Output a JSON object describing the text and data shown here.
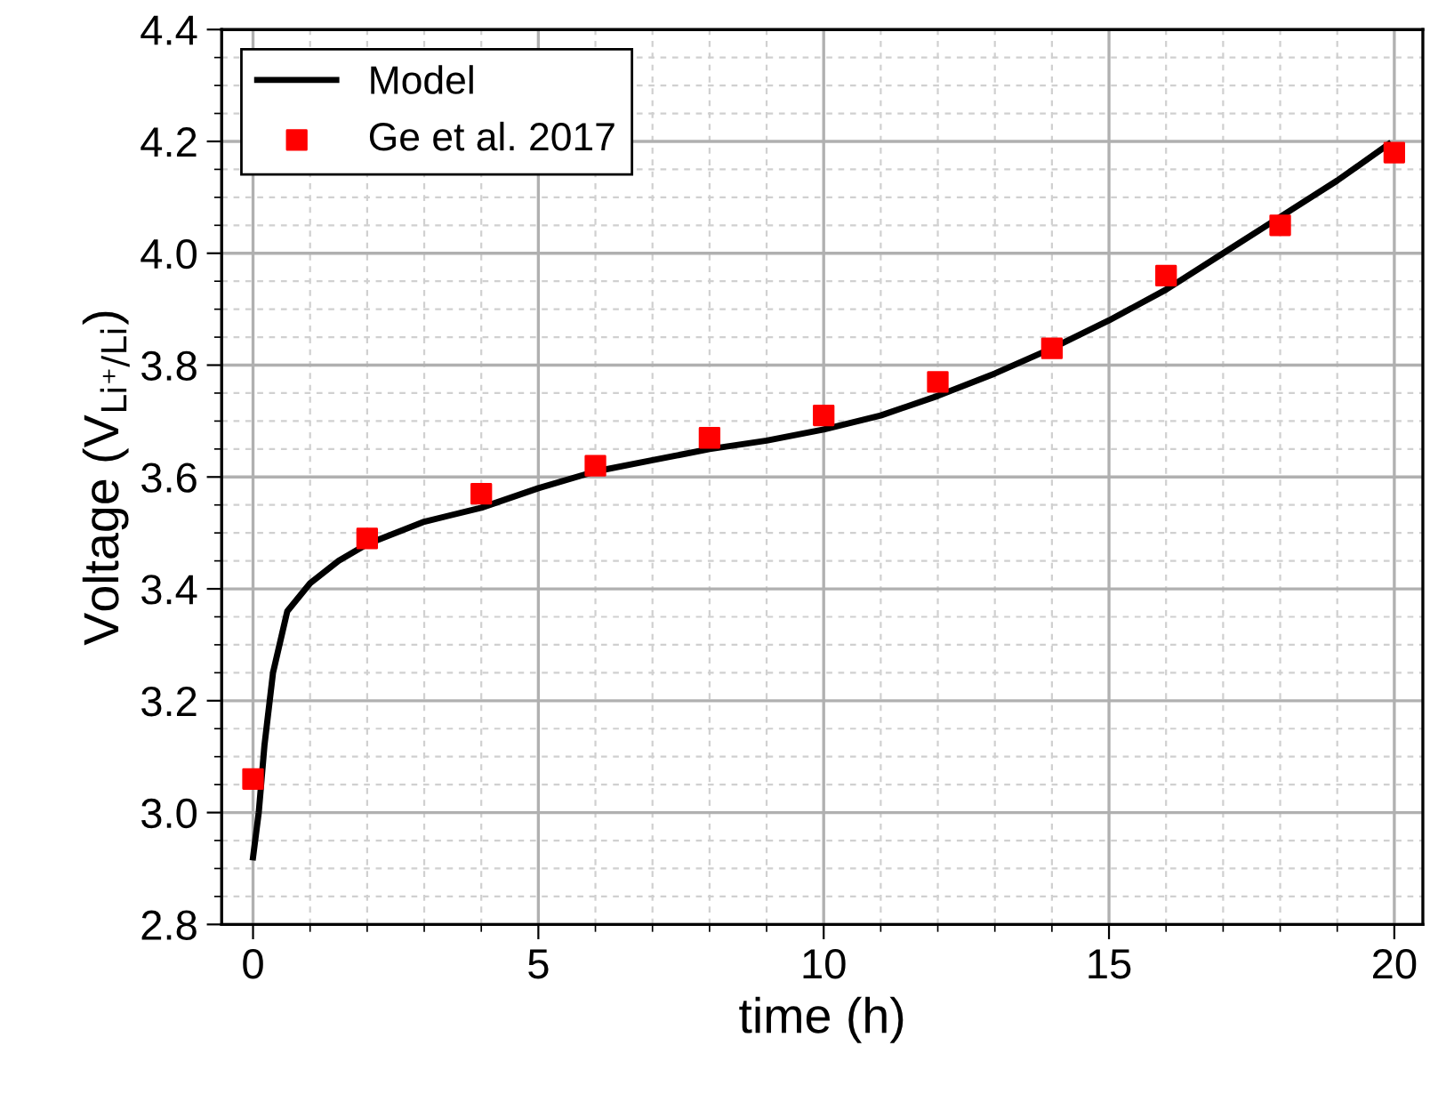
{
  "chart_data": {
    "type": "line",
    "xlabel": "time (h)",
    "ylabel": "Voltage (V$_{Li⁺/Li}$)",
    "xlim": [
      -0.55,
      20.5
    ],
    "ylim": [
      2.8,
      4.4
    ],
    "xticks": [
      0,
      5,
      10,
      15,
      20
    ],
    "yticks": [
      2.8,
      {
        "value": 3,
        "label": "3.0"
      },
      3.2,
      3.4,
      3.6,
      3.8,
      {
        "value": 4,
        "label": "4.0"
      },
      4.2,
      4.4
    ],
    "grid": true,
    "legend": "top left",
    "series": [
      {
        "name": "Model",
        "color": "#000000",
        "marker": "none",
        "line_style": "solid",
        "x": [
          0,
          0.1,
          0.2,
          0.35,
          0.6,
          1,
          1.5,
          2,
          3,
          4,
          5,
          6,
          7,
          8,
          9,
          10,
          11,
          12,
          13,
          14,
          15,
          16,
          17,
          18,
          19,
          19.9
        ],
        "values": [
          2.92,
          3.0,
          3.12,
          3.25,
          3.36,
          3.41,
          3.45,
          3.48,
          3.52,
          3.545,
          3.58,
          3.61,
          3.63,
          3.65,
          3.665,
          3.685,
          3.71,
          3.745,
          3.785,
          3.83,
          3.88,
          3.935,
          4.0,
          4.065,
          4.13,
          4.195
        ]
      },
      {
        "name": "Ge et al. 2017",
        "type": "scatter",
        "color": "#ff0000",
        "marker": "square",
        "x": [
          0,
          2,
          4,
          6,
          8,
          10,
          12,
          14,
          16,
          18,
          20
        ],
        "values": [
          3.06,
          3.49,
          3.57,
          3.62,
          3.67,
          3.71,
          3.77,
          3.83,
          3.96,
          4.05,
          4.18
        ]
      }
    ]
  }
}
